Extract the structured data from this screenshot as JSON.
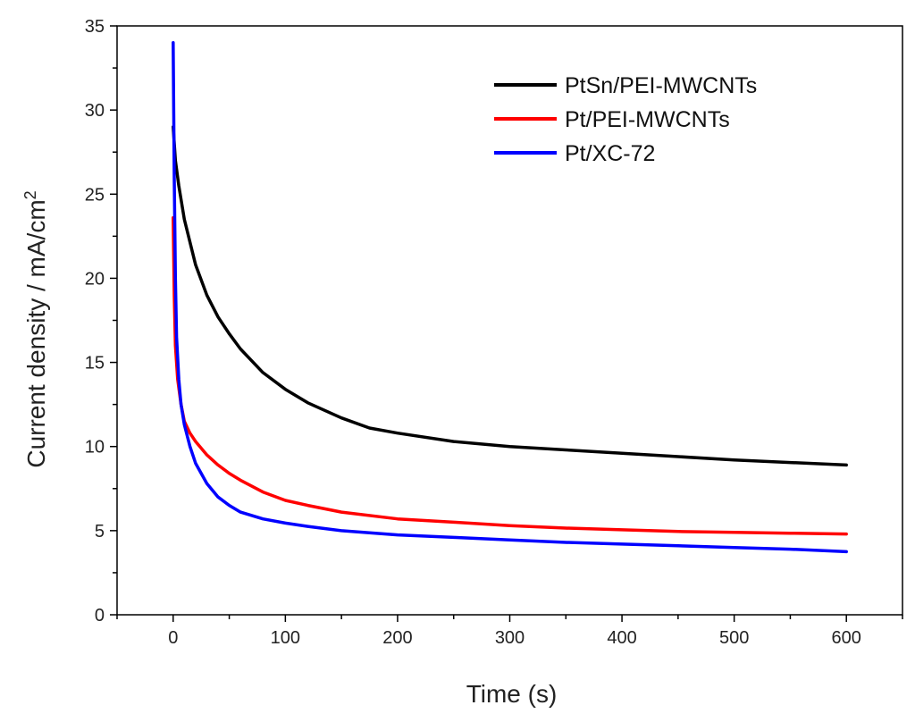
{
  "chart_data": {
    "type": "line",
    "xlabel": "Time (s)",
    "ylabel": "Current density / mA/cm",
    "ylabel_superscript": "2",
    "xlim": [
      -50,
      650
    ],
    "ylim": [
      0,
      35
    ],
    "x_ticks": [
      0,
      100,
      200,
      300,
      400,
      500,
      600
    ],
    "x_tick_labels": [
      "0",
      "100",
      "200",
      "300",
      "400",
      "500",
      "600"
    ],
    "y_ticks": [
      0,
      5,
      10,
      15,
      20,
      25,
      30,
      35
    ],
    "y_tick_labels": [
      "0",
      "5",
      "10",
      "15",
      "20",
      "25",
      "30",
      "35"
    ],
    "grid": false,
    "legend_position": "top-right",
    "series": [
      {
        "name": "PtSn/PEI-MWCNTs",
        "color": "#000000",
        "x": [
          0,
          2,
          5,
          10,
          20,
          30,
          40,
          50,
          60,
          80,
          100,
          120,
          150,
          175,
          200,
          250,
          300,
          350,
          400,
          450,
          500,
          550,
          600
        ],
        "y": [
          29.0,
          27.0,
          25.5,
          23.5,
          20.8,
          19.0,
          17.7,
          16.7,
          15.8,
          14.4,
          13.4,
          12.6,
          11.7,
          11.1,
          10.8,
          10.3,
          10.0,
          9.8,
          9.6,
          9.4,
          9.2,
          9.05,
          8.9
        ]
      },
      {
        "name": "Pt/PEI-MWCNTs",
        "color": "#ff0000",
        "x": [
          0,
          1,
          2,
          4,
          7,
          10,
          15,
          20,
          30,
          40,
          50,
          60,
          80,
          100,
          120,
          150,
          200,
          250,
          300,
          350,
          400,
          450,
          500,
          550,
          600
        ],
        "y": [
          23.6,
          19.0,
          16.0,
          14.0,
          12.5,
          11.5,
          10.8,
          10.3,
          9.5,
          8.9,
          8.4,
          8.0,
          7.3,
          6.8,
          6.5,
          6.1,
          5.7,
          5.5,
          5.3,
          5.15,
          5.05,
          4.95,
          4.9,
          4.85,
          4.8
        ]
      },
      {
        "name": "Pt/XC-72",
        "color": "#0000ff",
        "x": [
          0,
          1,
          2,
          3,
          5,
          7,
          10,
          15,
          20,
          30,
          40,
          50,
          60,
          80,
          100,
          120,
          150,
          200,
          250,
          300,
          350,
          400,
          450,
          500,
          550,
          600
        ],
        "y": [
          34.0,
          26.0,
          20.0,
          16.5,
          14.0,
          12.5,
          11.3,
          10.0,
          9.0,
          7.8,
          7.0,
          6.5,
          6.1,
          5.7,
          5.45,
          5.25,
          5.0,
          4.75,
          4.6,
          4.45,
          4.3,
          4.2,
          4.1,
          4.0,
          3.9,
          3.75
        ]
      }
    ]
  }
}
